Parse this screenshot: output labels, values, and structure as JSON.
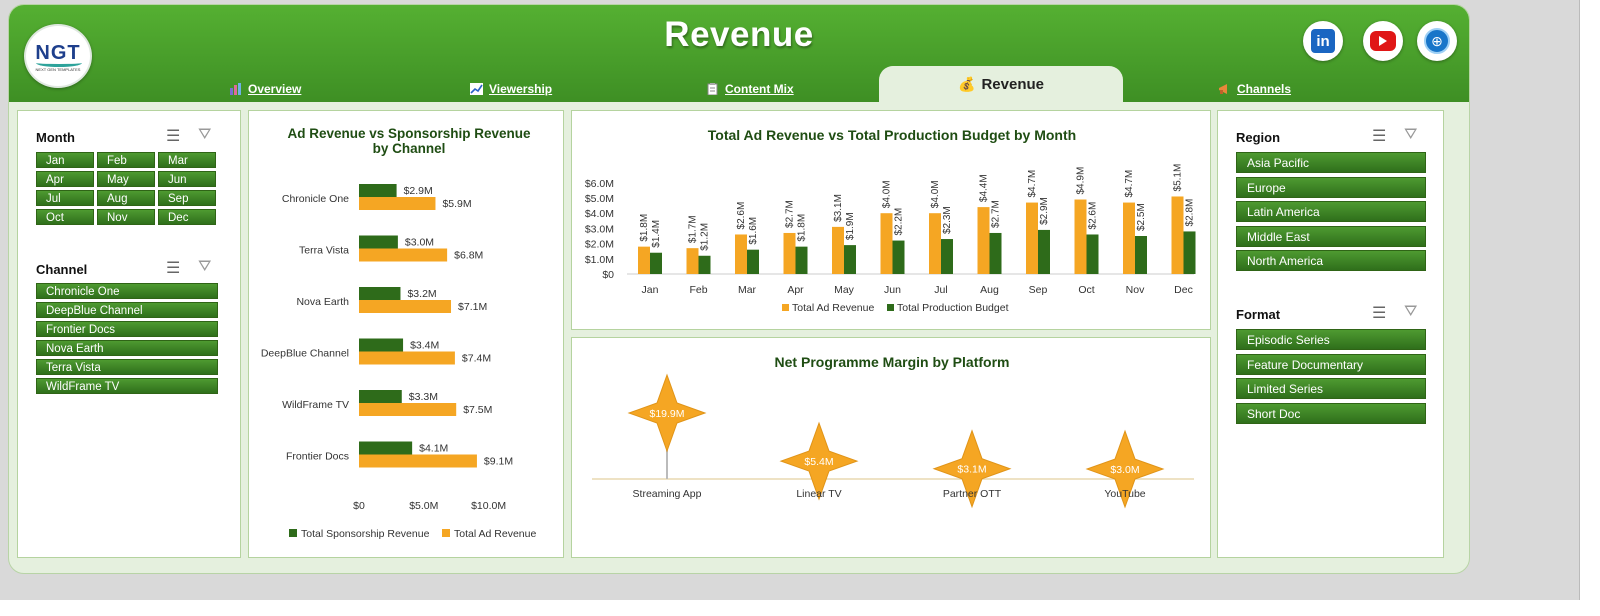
{
  "header": {
    "title": "Revenue",
    "logo_text": "NGT",
    "logo_subtext": "NEXT GEN TEMPLATES"
  },
  "tabs": [
    {
      "label": "Overview",
      "icon": "bar-chart-icon"
    },
    {
      "label": "Viewership",
      "icon": "line-chart-icon"
    },
    {
      "label": "Content Mix",
      "icon": "clipboard-icon"
    },
    {
      "label": "Revenue",
      "icon": "money-bag-icon",
      "active": true
    },
    {
      "label": "Channels",
      "icon": "megaphone-icon"
    }
  ],
  "social": {
    "linkedin": "in"
  },
  "slicers": {
    "month": {
      "label": "Month",
      "items": [
        "Jan",
        "Feb",
        "Mar",
        "Apr",
        "May",
        "Jun",
        "Jul",
        "Aug",
        "Sep",
        "Oct",
        "Nov",
        "Dec"
      ]
    },
    "channel": {
      "label": "Channel",
      "items": [
        "Chronicle One",
        "DeepBlue Channel",
        "Frontier Docs",
        "Nova Earth",
        "Terra Vista",
        "WildFrame TV"
      ]
    },
    "region": {
      "label": "Region",
      "items": [
        "Asia Pacific",
        "Europe",
        "Latin America",
        "Middle East",
        "North America"
      ]
    },
    "format": {
      "label": "Format",
      "items": [
        "Episodic Series",
        "Feature Documentary",
        "Limited Series",
        "Short Doc"
      ]
    }
  },
  "colors": {
    "orange": "#f5a623",
    "green": "#2e6b1a",
    "header": "#4ca02c"
  },
  "chart_data": [
    {
      "type": "bar",
      "orientation": "horizontal",
      "title": "Ad Revenue vs Sponsorship Revenue by Channel",
      "categories": [
        "Chronicle One",
        "Terra Vista",
        "Nova Earth",
        "DeepBlue Channel",
        "WildFrame TV",
        "Frontier Docs"
      ],
      "series": [
        {
          "name": "Total Sponsorship Revenue",
          "values": [
            2.9,
            3.0,
            3.2,
            3.4,
            3.3,
            4.1
          ],
          "labels": [
            "$2.9M",
            "$3.0M",
            "$3.2M",
            "$3.4M",
            "$3.3M",
            "$4.1M"
          ]
        },
        {
          "name": "Total Ad Revenue",
          "values": [
            5.9,
            6.8,
            7.1,
            7.4,
            7.5,
            9.1
          ],
          "labels": [
            "$5.9M",
            "$6.8M",
            "$7.1M",
            "$7.4M",
            "$7.5M",
            "$9.1M"
          ]
        }
      ],
      "xticks": [
        "$0",
        "$5.0M",
        "$10.0M"
      ],
      "xlim": [
        0,
        10
      ]
    },
    {
      "type": "bar",
      "title": "Total Ad Revenue vs Total Production Budget by Month",
      "categories": [
        "Jan",
        "Feb",
        "Mar",
        "Apr",
        "May",
        "Jun",
        "Jul",
        "Aug",
        "Sep",
        "Oct",
        "Nov",
        "Dec"
      ],
      "series": [
        {
          "name": "Total Ad Revenue",
          "values": [
            1.8,
            1.7,
            2.6,
            2.7,
            3.1,
            4.0,
            4.0,
            4.4,
            4.7,
            4.9,
            4.7,
            5.1
          ],
          "labels": [
            "$1.8M",
            "$1.7M",
            "$2.6M",
            "$2.7M",
            "$3.1M",
            "$4.0M",
            "$4.0M",
            "$4.4M",
            "$4.7M",
            "$4.9M",
            "$4.7M",
            "$5.1M"
          ]
        },
        {
          "name": "Total Production Budget",
          "values": [
            1.4,
            1.2,
            1.6,
            1.8,
            1.9,
            2.2,
            2.3,
            2.7,
            2.9,
            2.6,
            2.5,
            2.8
          ],
          "labels": [
            "$1.4M",
            "$1.2M",
            "$1.6M",
            "$1.8M",
            "$1.9M",
            "$2.2M",
            "$2.3M",
            "$2.7M",
            "$2.9M",
            "$2.6M",
            "$2.5M",
            "$2.8M"
          ]
        }
      ],
      "yticks": [
        "$0",
        "$1.0M",
        "$2.0M",
        "$3.0M",
        "$4.0M",
        "$5.0M",
        "$6.0M"
      ],
      "ylim": [
        0,
        6
      ]
    },
    {
      "type": "scatter",
      "title": "Net Programme Margin by Platform",
      "categories": [
        "Streaming App",
        "Linear TV",
        "Partner OTT",
        "YouTube"
      ],
      "values": [
        19.9,
        5.4,
        3.1,
        3.0
      ],
      "labels": [
        "$19.9M",
        "$5.4M",
        "$3.1M",
        "$3.0M"
      ]
    }
  ]
}
